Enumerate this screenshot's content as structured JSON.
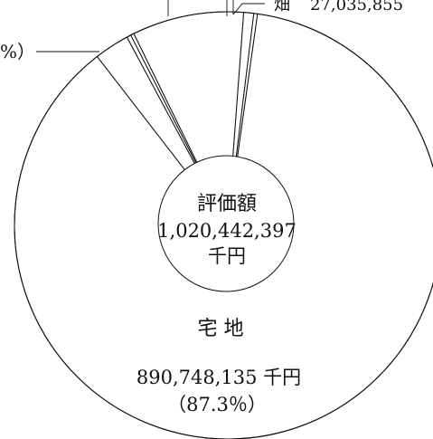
{
  "chart_data": {
    "type": "pie",
    "title": "",
    "center_label": {
      "line1": "評価額",
      "line2": "1,020,442,397",
      "line3": "千円"
    },
    "slices": [
      {
        "name": "宅 地",
        "value": 890748135,
        "value_text": "890,748,135 千円",
        "percent_text": "（87.3％）"
      },
      {
        "name": "畑",
        "value": 27035855,
        "value_text": "27,035,855",
        "percent_text": ""
      },
      {
        "name": "",
        "value": 3300000,
        "value_text": "",
        "percent_text": ""
      },
      {
        "name": "",
        "value": 2600000,
        "value_text": "",
        "percent_text": ""
      },
      {
        "name": "",
        "value": 86210000,
        "value_text": "",
        "percent_text": ""
      },
      {
        "name": "",
        "value": 7748407,
        "value_text": "",
        "percent_text": ""
      },
      {
        "name": "",
        "value": 2800000,
        "value_text": "",
        "percent_text": ""
      }
    ],
    "fragment_label": "%）",
    "legend": "none",
    "grid": false
  }
}
